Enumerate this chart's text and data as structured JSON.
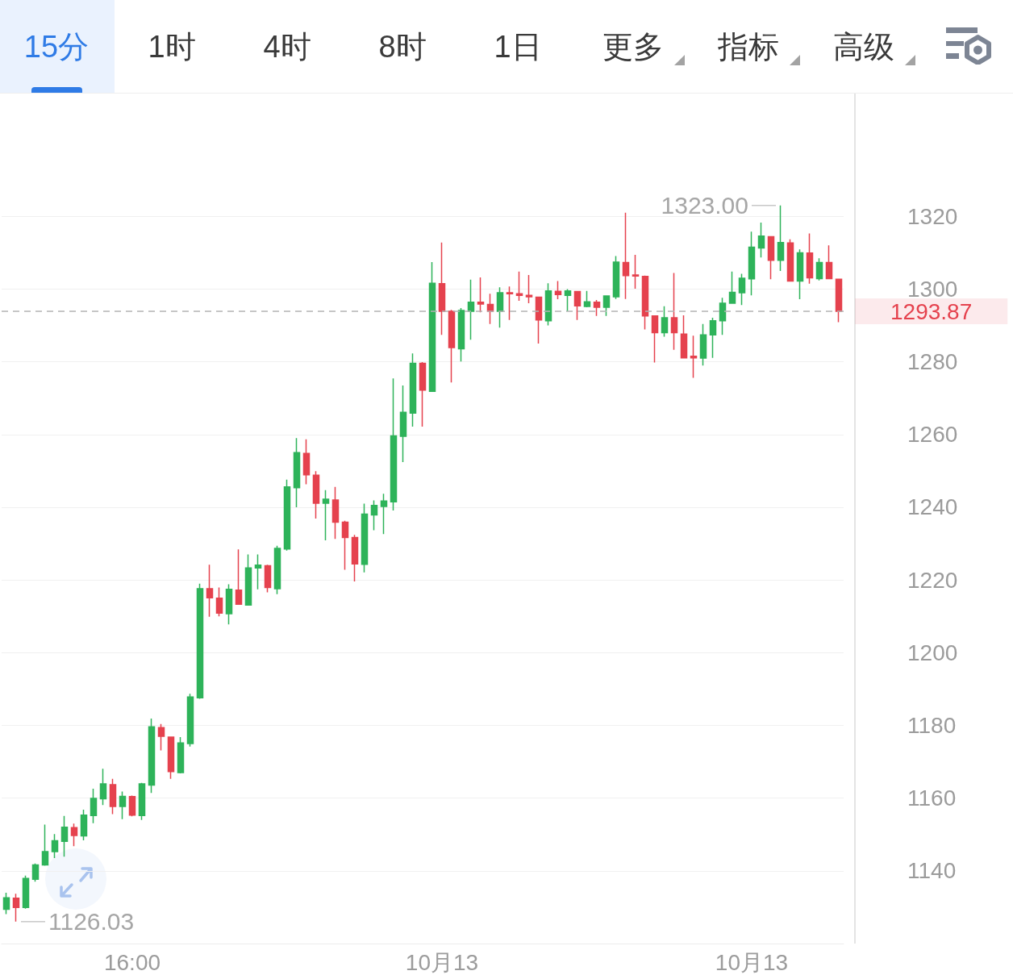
{
  "chart_data": {
    "type": "candlestick",
    "categories": [
      null,
      null,
      null,
      null,
      null,
      null,
      null,
      null,
      null,
      null,
      null,
      null,
      null,
      "16:00",
      null,
      null,
      null,
      null,
      null,
      null,
      null,
      null,
      null,
      null,
      null,
      null,
      null,
      null,
      null,
      null,
      null,
      null,
      null,
      null,
      null,
      null,
      null,
      null,
      null,
      null,
      null,
      null,
      null,
      null,
      null,
      "10月13",
      null,
      null,
      null,
      null,
      null,
      null,
      null,
      null,
      null,
      null,
      null,
      null,
      null,
      null,
      null,
      null,
      null,
      null,
      null,
      null,
      null,
      null,
      null,
      null,
      null,
      null,
      null,
      null,
      null,
      null,
      null,
      "10月13",
      null,
      null,
      null,
      null,
      null,
      null,
      null,
      null,
      null
    ],
    "ohlc": [
      [
        1129.4,
        1134.0,
        1128.1,
        1132.6
      ],
      [
        1132.5,
        1133.7,
        1126.03,
        1129.9
      ],
      [
        1129.9,
        1138.7,
        1129.6,
        1137.9
      ],
      [
        1137.7,
        1142.0,
        1137.0,
        1141.6
      ],
      [
        1141.6,
        1152.7,
        1141.4,
        1145.3
      ],
      [
        1145.3,
        1150.1,
        1143.5,
        1148.3
      ],
      [
        1148.1,
        1155.1,
        1143.9,
        1152.0
      ],
      [
        1151.9,
        1153.0,
        1146.8,
        1149.7
      ],
      [
        1149.6,
        1156.8,
        1148.4,
        1155.3
      ],
      [
        1155.2,
        1162.6,
        1153.1,
        1159.9
      ],
      [
        1159.8,
        1168.1,
        1158.1,
        1163.9
      ],
      [
        1163.7,
        1165.3,
        1155.6,
        1157.7
      ],
      [
        1157.7,
        1161.8,
        1154.2,
        1160.5
      ],
      [
        1160.4,
        1160.7,
        1155.0,
        1155.3
      ],
      [
        1155.2,
        1164.2,
        1154.0,
        1163.9
      ],
      [
        1163.6,
        1181.9,
        1161.4,
        1179.6
      ],
      [
        1179.4,
        1180.4,
        1173.1,
        1177.0
      ],
      [
        1176.8,
        1176.8,
        1165.3,
        1167.3
      ],
      [
        1167.0,
        1176.8,
        1166.8,
        1175.2
      ],
      [
        1175.0,
        1188.7,
        1174.2,
        1187.8
      ],
      [
        1187.6,
        1219.0,
        1187.3,
        1217.6
      ],
      [
        1217.6,
        1224.2,
        1209.9,
        1215.1
      ],
      [
        1215.0,
        1217.9,
        1210.0,
        1210.9
      ],
      [
        1210.7,
        1218.8,
        1207.8,
        1217.4
      ],
      [
        1217.2,
        1228.4,
        1213.3,
        1213.3
      ],
      [
        1213.1,
        1227.0,
        1213.0,
        1223.3
      ],
      [
        1223.3,
        1227.0,
        1217.4,
        1224.1
      ],
      [
        1223.9,
        1224.2,
        1216.6,
        1217.9
      ],
      [
        1217.6,
        1229.4,
        1216.1,
        1228.7
      ],
      [
        1228.5,
        1247.6,
        1228.1,
        1245.6
      ],
      [
        1245.4,
        1259.0,
        1240.0,
        1255.0
      ],
      [
        1254.8,
        1258.7,
        1246.3,
        1248.9
      ],
      [
        1248.8,
        1249.9,
        1236.9,
        1241.1
      ],
      [
        1241.1,
        1244.7,
        1230.9,
        1242.2
      ],
      [
        1242.0,
        1245.6,
        1231.3,
        1235.9
      ],
      [
        1235.9,
        1236.3,
        1222.8,
        1231.7
      ],
      [
        1231.7,
        1232.4,
        1219.6,
        1224.4
      ],
      [
        1224.3,
        1241.0,
        1222.1,
        1238.1
      ],
      [
        1237.9,
        1241.9,
        1233.7,
        1240.5
      ],
      [
        1240.2,
        1243.7,
        1232.6,
        1241.7
      ],
      [
        1241.5,
        1275.4,
        1239.1,
        1259.6
      ],
      [
        1259.5,
        1273.5,
        1252.4,
        1266.1
      ],
      [
        1265.9,
        1282.3,
        1262.2,
        1279.6
      ],
      [
        1279.6,
        1279.9,
        1262.2,
        1272.2
      ],
      [
        1271.9,
        1307.4,
        1271.9,
        1301.6
      ],
      [
        1301.5,
        1312.8,
        1287.4,
        1293.9
      ],
      [
        1293.9,
        1294.3,
        1274.3,
        1283.9
      ],
      [
        1283.6,
        1294.8,
        1280.1,
        1294.1
      ],
      [
        1293.9,
        1302.6,
        1286.1,
        1296.4
      ],
      [
        1296.4,
        1303.2,
        1293.6,
        1295.9
      ],
      [
        1295.8,
        1298.7,
        1290.4,
        1293.9
      ],
      [
        1293.9,
        1300.5,
        1289.4,
        1299.0
      ],
      [
        1299.0,
        1300.7,
        1291.5,
        1298.7
      ],
      [
        1298.7,
        1304.8,
        1296.8,
        1298.3
      ],
      [
        1298.3,
        1303.9,
        1296.1,
        1297.9
      ],
      [
        1297.8,
        1297.8,
        1285.0,
        1291.5
      ],
      [
        1291.3,
        1301.6,
        1290.0,
        1299.5
      ],
      [
        1299.4,
        1302.2,
        1297.2,
        1298.5
      ],
      [
        1298.3,
        1300.0,
        1293.9,
        1299.5
      ],
      [
        1299.3,
        1299.3,
        1291.5,
        1295.4
      ],
      [
        1295.2,
        1299.5,
        1295.0,
        1296.5
      ],
      [
        1296.4,
        1297.0,
        1292.6,
        1295.0
      ],
      [
        1295.0,
        1298.1,
        1292.6,
        1298.1
      ],
      [
        1297.9,
        1309.1,
        1297.3,
        1307.4
      ],
      [
        1307.3,
        1321.0,
        1297.3,
        1303.7
      ],
      [
        1303.9,
        1309.4,
        1300.1,
        1303.6
      ],
      [
        1303.5,
        1303.7,
        1288.9,
        1292.6
      ],
      [
        1292.6,
        1292.6,
        1279.8,
        1288.0
      ],
      [
        1288.0,
        1295.3,
        1286.9,
        1292.1
      ],
      [
        1292.1,
        1304.4,
        1283.3,
        1288.0
      ],
      [
        1287.6,
        1292.8,
        1281.0,
        1281.1
      ],
      [
        1281.5,
        1287.2,
        1275.6,
        1281.1
      ],
      [
        1281.0,
        1290.4,
        1279.0,
        1287.4
      ],
      [
        1287.4,
        1292.1,
        1281.1,
        1291.3
      ],
      [
        1291.3,
        1297.6,
        1287.4,
        1296.1
      ],
      [
        1296.1,
        1304.8,
        1296.1,
        1299.1
      ],
      [
        1299.0,
        1304.2,
        1295.6,
        1303.0
      ],
      [
        1302.8,
        1315.8,
        1298.3,
        1311.5
      ],
      [
        1311.3,
        1318.3,
        1308.7,
        1314.6
      ],
      [
        1314.4,
        1314.4,
        1302.7,
        1307.9
      ],
      [
        1307.9,
        1323.0,
        1305.0,
        1312.8
      ],
      [
        1312.7,
        1313.7,
        1302.2,
        1302.2
      ],
      [
        1302.2,
        1310.9,
        1297.2,
        1310.0
      ],
      [
        1309.9,
        1315.3,
        1301.5,
        1303.1
      ],
      [
        1302.9,
        1308.5,
        1302.4,
        1307.3
      ],
      [
        1307.3,
        1312.0,
        1302.7,
        1302.9
      ],
      [
        1302.7,
        1302.9,
        1290.9,
        1293.87
      ]
    ],
    "colors": [
      "#2eb35a",
      "#e5424e",
      "#2eb35a",
      "#2eb35a",
      "#2eb35a",
      "#2eb35a",
      "#2eb35a",
      "#e5424e",
      "#2eb35a",
      "#2eb35a",
      "#2eb35a",
      "#e5424e",
      "#2eb35a",
      "#e5424e",
      "#2eb35a",
      "#2eb35a",
      "#e5424e",
      "#e5424e",
      "#2eb35a",
      "#2eb35a",
      "#2eb35a",
      "#e5424e",
      "#e5424e",
      "#2eb35a",
      "#e5424e",
      "#2eb35a",
      "#2eb35a",
      "#e5424e",
      "#2eb35a",
      "#2eb35a",
      "#2eb35a",
      "#e5424e",
      "#e5424e",
      "#2eb35a",
      "#e5424e",
      "#e5424e",
      "#e5424e",
      "#2eb35a",
      "#2eb35a",
      "#2eb35a",
      "#2eb35a",
      "#2eb35a",
      "#2eb35a",
      "#e5424e",
      "#2eb35a",
      "#e5424e",
      "#e5424e",
      "#2eb35a",
      "#2eb35a",
      "#e5424e",
      "#e5424e",
      "#2eb35a",
      "#e5424e",
      "#e5424e",
      "#e5424e",
      "#e5424e",
      "#2eb35a",
      "#e5424e",
      "#2eb35a",
      "#e5424e",
      "#2eb35a",
      "#e5424e",
      "#2eb35a",
      "#2eb35a",
      "#e5424e",
      "#e5424e",
      "#e5424e",
      "#e5424e",
      "#2eb35a",
      "#e5424e",
      "#e5424e",
      "#e5424e",
      "#2eb35a",
      "#2eb35a",
      "#2eb35a",
      "#2eb35a",
      "#2eb35a",
      "#2eb35a",
      "#2eb35a",
      "#e5424e",
      "#2eb35a",
      "#e5424e",
      "#2eb35a",
      "#e5424e",
      "#2eb35a",
      "#e5424e",
      "#e5424e"
    ],
    "ylim": [
      1120,
      1354
    ],
    "yticks": [
      1140,
      1160,
      1180,
      1200,
      1220,
      1240,
      1260,
      1280,
      1300,
      1320
    ],
    "grid": "y",
    "ref_lines": [
      {
        "axis": "y",
        "value": 1293.87,
        "label": "1293.87",
        "color": "#b4b4b4",
        "line_style": "dashed"
      }
    ],
    "annotations": [
      "15分",
      "1时",
      "4时",
      "8时",
      "1日",
      "更多",
      "指标",
      "高级",
      "1323.00",
      "1126.03"
    ]
  }
}
